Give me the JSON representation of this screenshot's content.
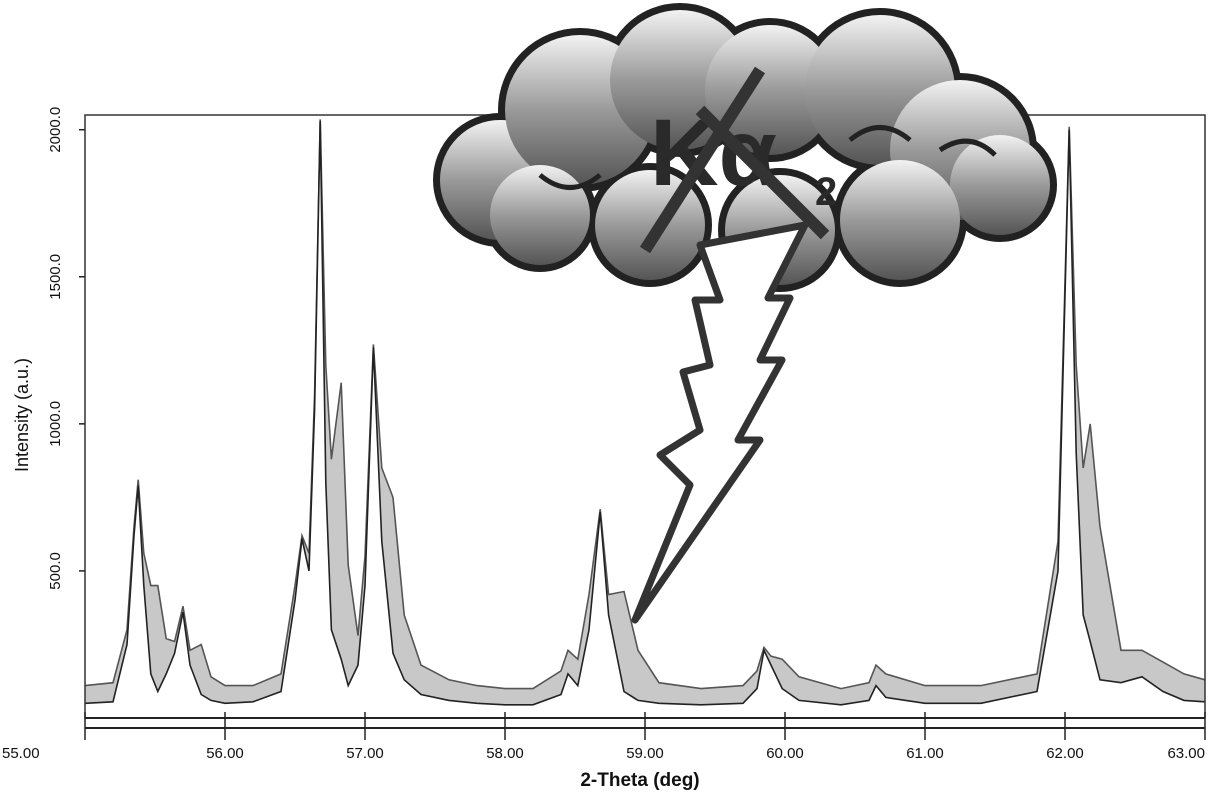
{
  "chart_data": {
    "type": "area",
    "xlabel": "2-Theta (deg)",
    "ylabel": "Intensity (a.u.)",
    "annotation": "Kα",
    "annotation_subscript": "2",
    "x": [
      55.0,
      55.2,
      55.3,
      55.35,
      55.38,
      55.42,
      55.47,
      55.52,
      55.58,
      55.64,
      55.7,
      55.75,
      55.83,
      55.9,
      56.0,
      56.2,
      56.4,
      56.5,
      56.55,
      56.6,
      56.64,
      56.68,
      56.72,
      56.76,
      56.83,
      56.88,
      56.95,
      57.0,
      57.06,
      57.12,
      57.2,
      57.28,
      57.4,
      57.6,
      57.8,
      58.0,
      58.2,
      58.4,
      58.45,
      58.52,
      58.6,
      58.68,
      58.74,
      58.85,
      58.95,
      59.1,
      59.4,
      59.7,
      59.8,
      59.85,
      59.9,
      59.98,
      60.1,
      60.4,
      60.6,
      60.65,
      60.72,
      61.0,
      61.4,
      61.8,
      61.95,
      62.03,
      62.08,
      62.13,
      62.18,
      62.25,
      62.4,
      62.55,
      62.7,
      62.85,
      63.0
    ],
    "series": [
      {
        "color": "#c8c8c8",
        "values": [
          110,
          120,
          300,
          650,
          810,
          560,
          450,
          450,
          270,
          260,
          380,
          230,
          250,
          140,
          110,
          110,
          150,
          450,
          620,
          560,
          1100,
          2035,
          1200,
          880,
          1140,
          520,
          280,
          550,
          1270,
          850,
          750,
          350,
          180,
          130,
          110,
          100,
          100,
          160,
          230,
          200,
          420,
          710,
          420,
          430,
          230,
          120,
          100,
          110,
          160,
          240,
          210,
          200,
          140,
          100,
          120,
          180,
          150,
          110,
          110,
          150,
          600,
          2010,
          1200,
          850,
          1000,
          650,
          230,
          230,
          190,
          150,
          130
        ]
      },
      {
        "color": "#222222",
        "values": [
          50,
          55,
          250,
          620,
          790,
          450,
          150,
          90,
          150,
          220,
          360,
          180,
          80,
          60,
          50,
          55,
          90,
          400,
          610,
          500,
          1050,
          2030,
          800,
          300,
          200,
          110,
          180,
          450,
          1260,
          600,
          220,
          130,
          80,
          60,
          50,
          45,
          45,
          80,
          150,
          110,
          300,
          700,
          350,
          90,
          60,
          50,
          45,
          50,
          100,
          230,
          180,
          100,
          60,
          45,
          60,
          110,
          70,
          50,
          50,
          90,
          500,
          2000,
          900,
          350,
          260,
          130,
          120,
          140,
          90,
          60,
          55
        ]
      }
    ],
    "xlim": [
      55,
      63
    ],
    "xticks": [
      {
        "value": 55,
        "label": "55.00"
      },
      {
        "value": 56,
        "label": "56.00"
      },
      {
        "value": 57,
        "label": "57.00"
      },
      {
        "value": 58,
        "label": "58.00"
      },
      {
        "value": 59,
        "label": "59.00"
      },
      {
        "value": 60,
        "label": "60.00"
      },
      {
        "value": 61,
        "label": "61.00"
      },
      {
        "value": 62,
        "label": "62.00"
      },
      {
        "value": 63,
        "label": "63.00"
      }
    ],
    "ylim": [
      0,
      2050
    ],
    "yticks": [
      {
        "value": 500,
        "label": "500.0"
      },
      {
        "value": 1000,
        "label": "1000.0"
      },
      {
        "value": 1500,
        "label": "1500.0"
      },
      {
        "value": 2000,
        "label": "2000.0"
      }
    ]
  }
}
